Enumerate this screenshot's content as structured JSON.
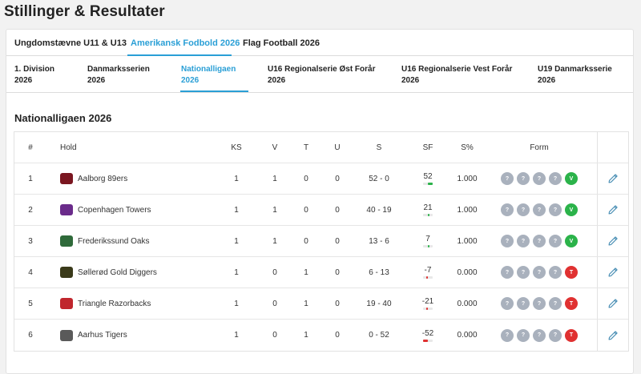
{
  "page_title": "Stillinger & Resultater",
  "top_tabs": [
    {
      "label": "Ungdomstævne U11 & U13",
      "active": false
    },
    {
      "label": "Amerikansk Fodbold 2026",
      "active": true
    },
    {
      "label": "Flag Football 2026",
      "active": false
    }
  ],
  "sub_tabs": [
    {
      "line1": "1. Division",
      "line2": "2026",
      "active": false
    },
    {
      "line1": "Danmarksserien",
      "line2": "2026",
      "active": false
    },
    {
      "line1": "Nationalligaen",
      "line2": "2026",
      "active": true
    },
    {
      "line1": "U16 Regionalserie Øst Forår",
      "line2": "2026",
      "active": false
    },
    {
      "line1": "U16 Regionalserie Vest Forår",
      "line2": "2026",
      "active": false
    },
    {
      "line1": "U19 Danmarksserie",
      "line2": "2026",
      "active": false
    }
  ],
  "section_title": "Nationalligaen 2026",
  "table": {
    "headers": {
      "rank": "#",
      "team": "Hold",
      "ks": "KS",
      "v": "V",
      "t": "T",
      "u": "U",
      "s": "S",
      "sf": "SF",
      "spct": "S%",
      "form": "Form"
    },
    "rows": [
      {
        "rank": "1",
        "team": "Aalborg 89ers",
        "logo_color": "#7a1620",
        "ks": "1",
        "v": "1",
        "t": "0",
        "u": "0",
        "s": "52 - 0",
        "sf": "52",
        "sf_value": 52,
        "spct": "1.000",
        "form": [
          "?",
          "?",
          "?",
          "?",
          "V"
        ],
        "form_result": "win"
      },
      {
        "rank": "2",
        "team": "Copenhagen Towers",
        "logo_color": "#6a2b8a",
        "ks": "1",
        "v": "1",
        "t": "0",
        "u": "0",
        "s": "40 - 19",
        "sf": "21",
        "sf_value": 21,
        "spct": "1.000",
        "form": [
          "?",
          "?",
          "?",
          "?",
          "V"
        ],
        "form_result": "win"
      },
      {
        "rank": "3",
        "team": "Frederikssund Oaks",
        "logo_color": "#2f6a3a",
        "ks": "1",
        "v": "1",
        "t": "0",
        "u": "0",
        "s": "13 - 6",
        "sf": "7",
        "sf_value": 7,
        "spct": "1.000",
        "form": [
          "?",
          "?",
          "?",
          "?",
          "V"
        ],
        "form_result": "win"
      },
      {
        "rank": "4",
        "team": "Søllerød Gold Diggers",
        "logo_color": "#3a3a1a",
        "ks": "1",
        "v": "0",
        "t": "1",
        "u": "0",
        "s": "6 - 13",
        "sf": "-7",
        "sf_value": -7,
        "spct": "0.000",
        "form": [
          "?",
          "?",
          "?",
          "?",
          "T"
        ],
        "form_result": "loss"
      },
      {
        "rank": "5",
        "team": "Triangle Razorbacks",
        "logo_color": "#c0262d",
        "ks": "1",
        "v": "0",
        "t": "1",
        "u": "0",
        "s": "19 - 40",
        "sf": "-21",
        "sf_value": -21,
        "spct": "0.000",
        "form": [
          "?",
          "?",
          "?",
          "?",
          "T"
        ],
        "form_result": "loss"
      },
      {
        "rank": "6",
        "team": "Aarhus Tigers",
        "logo_color": "#5a5a5a",
        "ks": "1",
        "v": "0",
        "t": "1",
        "u": "0",
        "s": "0 - 52",
        "sf": "-52",
        "sf_value": -52,
        "spct": "0.000",
        "form": [
          "?",
          "?",
          "?",
          "?",
          "T"
        ],
        "form_result": "loss"
      }
    ]
  },
  "colors": {
    "accent": "#2a9fd6",
    "win": "#2bb34a",
    "loss": "#e03131",
    "unknown": "#a9b1bd"
  }
}
